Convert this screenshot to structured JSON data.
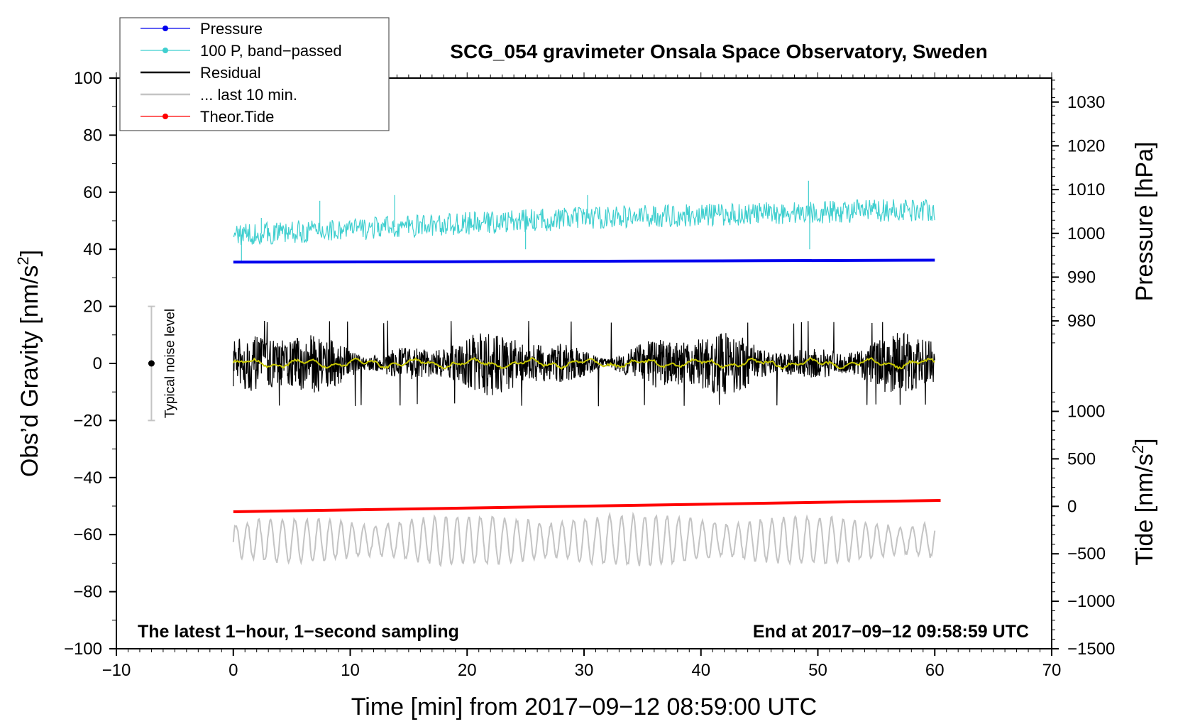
{
  "chart_data": {
    "type": "line",
    "title": "SCG_054 gravimeter Onsala Space Observatory, Sweden",
    "xlabel": "Time [min] from 2017−09−12 08:59:00 UTC",
    "ylabel_left": "Obs’d Gravity [nm/s",
    "ylabel_left_sup": "2",
    "ylabel_left_end": "]",
    "ylabel_right_top": "Pressure [hPa]",
    "ylabel_right_bottom": "Tide [nm/s",
    "ylabel_right_bottom_sup": "2",
    "ylabel_right_bottom_end": "]",
    "xlim": [
      -10,
      70
    ],
    "ylim": [
      -100,
      100
    ],
    "x_ticks": [
      -10,
      0,
      10,
      20,
      30,
      40,
      50,
      60,
      70
    ],
    "x_tick_labels": [
      "−10",
      "0",
      "10",
      "20",
      "30",
      "40",
      "50",
      "60",
      "70"
    ],
    "y_ticks": [
      100,
      80,
      60,
      40,
      20,
      0,
      -20,
      -40,
      -60,
      -80,
      -100
    ],
    "y_tick_labels": [
      "100",
      "80",
      "60",
      "40",
      "20",
      "0",
      "−20",
      "−40",
      "−60",
      "−80",
      "−100"
    ],
    "pressure_axis": {
      "ticks": [
        1030,
        1020,
        1010,
        1000,
        990,
        980
      ],
      "tick_labels": [
        "1030",
        "1020",
        "1010",
        "1000",
        "990",
        "980"
      ],
      "gravity_ref": [
        [
          1030,
          91.6
        ],
        [
          980,
          14.9
        ]
      ]
    },
    "tide_axis": {
      "ticks": [
        1000,
        500,
        0,
        -500,
        -1000,
        -1500
      ],
      "tick_labels": [
        "1000",
        "500",
        "0",
        "−500",
        "−1000",
        "−1500"
      ],
      "gravity_ref": [
        [
          1000,
          -16.8
        ],
        [
          -1500,
          -100
        ]
      ]
    },
    "series": [
      {
        "name": "Pressure",
        "color": "#0000ee",
        "x": [
          0,
          15,
          30,
          45,
          60
        ],
        "y": [
          35.5,
          35.6,
          35.8,
          36.0,
          36.2
        ]
      },
      {
        "name": "100 P, band−passed",
        "color": "#3fcfcf",
        "x_range": [
          0,
          60
        ],
        "trend": [
          [
            0,
            45
          ],
          [
            10,
            47
          ],
          [
            20,
            49
          ],
          [
            30,
            51
          ],
          [
            40,
            52
          ],
          [
            50,
            53
          ],
          [
            60,
            54
          ]
        ],
        "amplitude": 4,
        "spikes": [
          [
            0.7,
            36
          ],
          [
            2.4,
            51
          ],
          [
            7.4,
            57
          ],
          [
            13.8,
            59
          ],
          [
            25.0,
            40
          ],
          [
            30.3,
            59
          ],
          [
            49.2,
            64
          ],
          [
            49.3,
            40
          ]
        ]
      },
      {
        "name": "Residual",
        "color": "#000000",
        "x_range": [
          0,
          60
        ],
        "center": 0,
        "amplitude": 9,
        "max": 15,
        "min": -15
      },
      {
        "name": "... last 10 min.",
        "color": "#c4c4c4",
        "x_range": [
          0,
          60
        ],
        "center": -62,
        "amplitude": 7,
        "max": -46,
        "min": -76
      },
      {
        "name": "Theor.Tide",
        "color": "#ff0000",
        "x": [
          0,
          60.5
        ],
        "y": [
          -52,
          -48
        ]
      },
      {
        "name": "running mean",
        "color": "#c8c800",
        "x_range": [
          0,
          60
        ],
        "center": 0,
        "amplitude": 1.6
      }
    ],
    "legend": [
      {
        "label": "Pressure",
        "color": "#0000ee",
        "marker": true
      },
      {
        "label": "100 P, band−passed",
        "color": "#3fcfcf",
        "marker": true
      },
      {
        "label": "Residual",
        "color": "#000000",
        "marker": false
      },
      {
        "label": "... last 10 min.",
        "color": "#c4c4c4",
        "marker": false
      },
      {
        "label": "Theor.Tide",
        "color": "#ff0000",
        "marker": true
      }
    ],
    "noise_bar": {
      "x": -7,
      "y": 0,
      "range": [
        -20,
        20
      ],
      "label": "Typical noise level"
    },
    "annotation_left": "The latest 1−hour, 1−second sampling",
    "annotation_right": "End at 2017−09−12 09:58:59 UTC"
  }
}
